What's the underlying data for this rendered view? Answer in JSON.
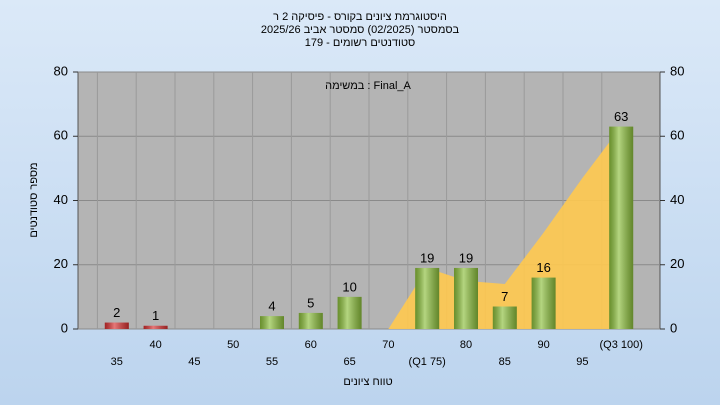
{
  "chart_data": {
    "type": "bar",
    "title": [
      "היסטוגרמת ציונים בקורס - פיסיקה 2 ר",
      "בסמסטר  (02/2025)  סמסטר אביב 2025/26",
      "סטודנטים רשומים - 179"
    ],
    "annotation": "במשימה : Final_A",
    "x_label": "טווח ציונים",
    "y_label": "מספר סטודנטים",
    "categories": [
      "35",
      "40",
      "45",
      "50",
      "55",
      "60",
      "65",
      "70",
      "(Q1 75)",
      "80",
      "85",
      "90",
      "95",
      "(Q3 100)"
    ],
    "values": [
      2,
      1,
      null,
      null,
      4,
      5,
      10,
      null,
      19,
      19,
      7,
      16,
      null,
      63
    ],
    "colors": [
      "#d83030",
      "#d83030",
      null,
      null,
      "#8cbf3c",
      "#8cbf3c",
      "#8cbf3c",
      null,
      "#8cbf3c",
      "#8cbf3c",
      "#8cbf3c",
      "#8cbf3c",
      null,
      "#8cbf3c"
    ],
    "area": {
      "color": "#ffc94f",
      "values": [
        null,
        null,
        null,
        null,
        null,
        null,
        null,
        0,
        19,
        15,
        14,
        30,
        47,
        63
      ]
    },
    "ylim": [
      0,
      80
    ],
    "yticks": [
      0,
      20,
      40,
      60,
      80
    ],
    "y2lim": [
      0,
      80
    ],
    "y2ticks": [
      0,
      20,
      40,
      60,
      80
    ],
    "grid": true
  }
}
